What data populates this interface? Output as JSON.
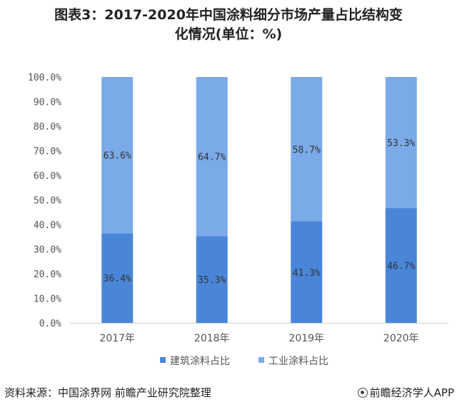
{
  "header": {
    "title_line1": "图表3：2017-2020年中国涂料细分市场产量占比结构变",
    "title_line2": "化情况(单位：%)"
  },
  "chart_data": {
    "type": "bar",
    "stacked": true,
    "categories": [
      "2017年",
      "2018年",
      "2019年",
      "2020年"
    ],
    "series": [
      {
        "name": "建筑涂料占比",
        "values": [
          36.4,
          35.3,
          41.3,
          46.7
        ],
        "labels": [
          "36.4%",
          "35.3%",
          "41.3%",
          "46.7%"
        ],
        "color": "#4a86d8"
      },
      {
        "name": "工业涂料占比",
        "values": [
          63.6,
          64.7,
          58.7,
          53.3
        ],
        "labels": [
          "63.6%",
          "64.7%",
          "58.7%",
          "53.3%"
        ],
        "color": "#7aaae8"
      }
    ],
    "ylim": [
      0,
      100
    ],
    "yticks": [
      "0.0%",
      "10.0%",
      "20.0%",
      "30.0%",
      "40.0%",
      "50.0%",
      "60.0%",
      "70.0%",
      "80.0%",
      "90.0%",
      "100.0%"
    ],
    "grid": false,
    "legend": "bottom"
  },
  "footer": {
    "source": "资料来源：中国涂界网 前瞻产业研究院整理",
    "brand": "前瞻经济学人APP",
    "brand_icon": "brand-logo-icon"
  }
}
